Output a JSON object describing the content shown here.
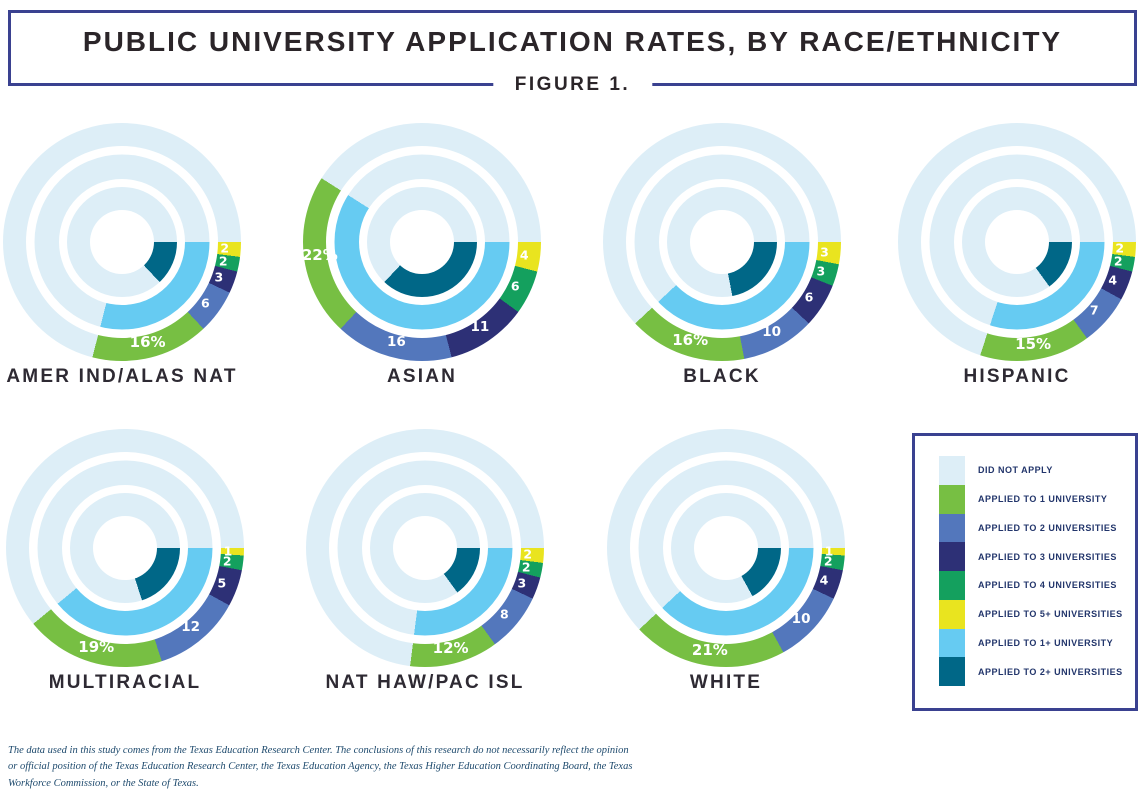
{
  "header": {
    "title": "PUBLIC UNIVERSITY APPLICATION RATES, BY RACE/ETHNICITY",
    "figure_label": "FIGURE 1."
  },
  "colors": {
    "did_not_apply": "#ddeef7",
    "applied_1": "#77bf43",
    "applied_2": "#5377bc",
    "applied_3": "#2d3076",
    "applied_4": "#14a05e",
    "applied_5_plus": "#e9e41f",
    "applied_1_plus": "#66cbf2",
    "applied_2_plus": "#006787",
    "box_border": "#3a4190"
  },
  "chart_data": {
    "type": "pie",
    "subtype": "triple-ring-donut",
    "start_angle_deg_clockwise_from_top": 90,
    "rings": {
      "outer": "application counts (5+,4,3,2,1 then did-not-apply), percent of group",
      "middle": "applied to 1+ university (sum of applied segments)",
      "inner": "applied to 2+ universities (sum minus applied-to-1)"
    },
    "units": "percent",
    "groups": [
      {
        "name": "AMER IND/ALAS NAT",
        "slug": "amer-ind-alas-nat",
        "did_not_apply": 71,
        "applied_1_plus": 29,
        "applied_2_plus": 13,
        "segments": [
          {
            "key": "applied_1",
            "value": 16,
            "label": "16%"
          },
          {
            "key": "applied_2",
            "value": 6,
            "label": "6"
          },
          {
            "key": "applied_3",
            "value": 3,
            "label": "3"
          },
          {
            "key": "applied_4",
            "value": 2,
            "label": "2"
          },
          {
            "key": "applied_5_plus",
            "value": 2,
            "label": "2"
          }
        ]
      },
      {
        "name": "ASIAN",
        "slug": "asian",
        "did_not_apply": 41,
        "applied_1_plus": 59,
        "applied_2_plus": 37,
        "segments": [
          {
            "key": "applied_1",
            "value": 22,
            "label": "22%"
          },
          {
            "key": "applied_2",
            "value": 16,
            "label": "16"
          },
          {
            "key": "applied_3",
            "value": 11,
            "label": "11"
          },
          {
            "key": "applied_4",
            "value": 6,
            "label": "6"
          },
          {
            "key": "applied_5_plus",
            "value": 4,
            "label": "4"
          }
        ]
      },
      {
        "name": "BLACK",
        "slug": "black",
        "did_not_apply": 62,
        "applied_1_plus": 38,
        "applied_2_plus": 22,
        "segments": [
          {
            "key": "applied_1",
            "value": 16,
            "label": "16%"
          },
          {
            "key": "applied_2",
            "value": 10,
            "label": "10"
          },
          {
            "key": "applied_3",
            "value": 6,
            "label": "6"
          },
          {
            "key": "applied_4",
            "value": 3,
            "label": "3"
          },
          {
            "key": "applied_5_plus",
            "value": 3,
            "label": "3"
          }
        ]
      },
      {
        "name": "HISPANIC",
        "slug": "hispanic",
        "did_not_apply": 70,
        "applied_1_plus": 30,
        "applied_2_plus": 15,
        "segments": [
          {
            "key": "applied_1",
            "value": 15,
            "label": "15%"
          },
          {
            "key": "applied_2",
            "value": 7,
            "label": "7"
          },
          {
            "key": "applied_3",
            "value": 4,
            "label": "4"
          },
          {
            "key": "applied_4",
            "value": 2,
            "label": "2"
          },
          {
            "key": "applied_5_plus",
            "value": 2,
            "label": "2"
          }
        ]
      },
      {
        "name": "MULTIRACIAL",
        "slug": "multiracial",
        "did_not_apply": 61,
        "applied_1_plus": 39,
        "applied_2_plus": 20,
        "segments": [
          {
            "key": "applied_1",
            "value": 19,
            "label": "19%"
          },
          {
            "key": "applied_2",
            "value": 12,
            "label": "12"
          },
          {
            "key": "applied_3",
            "value": 5,
            "label": "5"
          },
          {
            "key": "applied_4",
            "value": 2,
            "label": "2"
          },
          {
            "key": "applied_5_plus",
            "value": 1,
            "label": "1"
          }
        ]
      },
      {
        "name": "NAT HAW/PAC ISL",
        "slug": "nat-haw-pac-isl",
        "did_not_apply": 73,
        "applied_1_plus": 27,
        "applied_2_plus": 15,
        "segments": [
          {
            "key": "applied_1",
            "value": 12,
            "label": "12%"
          },
          {
            "key": "applied_2",
            "value": 8,
            "label": "8"
          },
          {
            "key": "applied_3",
            "value": 3,
            "label": "3"
          },
          {
            "key": "applied_4",
            "value": 2,
            "label": "2"
          },
          {
            "key": "applied_5_plus",
            "value": 2,
            "label": "2"
          }
        ]
      },
      {
        "name": "WHITE",
        "slug": "white",
        "did_not_apply": 62,
        "applied_1_plus": 38,
        "applied_2_plus": 17,
        "segments": [
          {
            "key": "applied_1",
            "value": 21,
            "label": "21%"
          },
          {
            "key": "applied_2",
            "value": 10,
            "label": "10"
          },
          {
            "key": "applied_3",
            "value": 4,
            "label": "4"
          },
          {
            "key": "applied_4",
            "value": 2,
            "label": "2"
          },
          {
            "key": "applied_5_plus",
            "value": 1,
            "label": "1"
          }
        ]
      }
    ]
  },
  "legend": {
    "items": [
      {
        "key": "did_not_apply",
        "label": "DID NOT APPLY"
      },
      {
        "key": "applied_1",
        "label": "APPLIED TO 1 UNIVERSITY"
      },
      {
        "key": "applied_2",
        "label": "APPLIED TO 2 UNIVERSITIES"
      },
      {
        "key": "applied_3",
        "label": "APPLIED TO 3 UNIVERSITIES"
      },
      {
        "key": "applied_4",
        "label": "APPLIED TO 4 UNIVERSITIES"
      },
      {
        "key": "applied_5_plus",
        "label": "APPLIED TO 5+ UNIVERSITIES"
      },
      {
        "key": "applied_1_plus",
        "label": "APPLIED TO 1+ UNIVERSITY"
      },
      {
        "key": "applied_2_plus",
        "label": "APPLIED TO 2+ UNIVERSITIES"
      }
    ]
  },
  "footnote": {
    "lines": [
      "The data used in this study comes from the Texas Education Research Center. The conclusions of this research do not necessarily reflect the opinion",
      "or official position of the Texas Education Research Center, the Texas Education Agency, the Texas Higher Education Coordinating Board, the Texas",
      "Workforce Commission, or the State of Texas."
    ]
  }
}
